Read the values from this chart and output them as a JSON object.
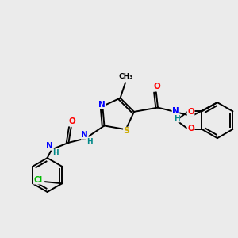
{
  "background_color": "#ebebeb",
  "atom_colors": {
    "C": "#000000",
    "N": "#0000ff",
    "O": "#ff0000",
    "S": "#ccaa00",
    "Cl": "#00bb00",
    "H": "#008888"
  },
  "bond_color": "#000000",
  "figsize": [
    3.0,
    3.0
  ],
  "dpi": 100
}
